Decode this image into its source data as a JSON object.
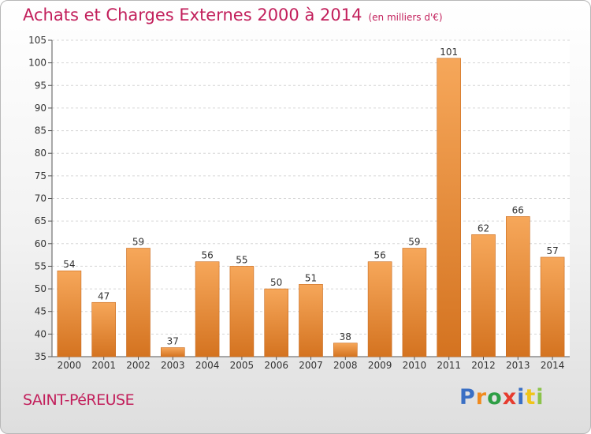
{
  "header": {
    "title": "Achats et Charges Externes 2000 à 2014",
    "unit": "(en milliers d'€)"
  },
  "footer": {
    "commune": "SAINT-PéREUSE",
    "logo": {
      "text": "Proxiti",
      "colors": [
        "#3a6fc4",
        "#f08a1e",
        "#2e9e45",
        "#e63c2f",
        "#3a6fc4",
        "#f0c419",
        "#8bc34a"
      ]
    }
  },
  "chart_data": {
    "type": "bar",
    "title": "Achats et Charges Externes 2000 à 2014",
    "subtitle": "(en milliers d'€)",
    "categories": [
      "2000",
      "2001",
      "2002",
      "2003",
      "2004",
      "2005",
      "2006",
      "2007",
      "2008",
      "2009",
      "2010",
      "2011",
      "2012",
      "2013",
      "2014"
    ],
    "values": [
      54,
      47,
      59,
      37,
      56,
      55,
      50,
      51,
      38,
      56,
      59,
      101,
      62,
      66,
      57
    ],
    "ylim": [
      35,
      105
    ],
    "yticks": [
      35,
      40,
      45,
      50,
      55,
      60,
      65,
      70,
      75,
      80,
      85,
      90,
      95,
      100,
      105
    ],
    "grid": true,
    "data_labels": true,
    "bar_colors": {
      "top": "#f6a75a",
      "bottom": "#d47320"
    },
    "xlabel": "",
    "ylabel": ""
  }
}
